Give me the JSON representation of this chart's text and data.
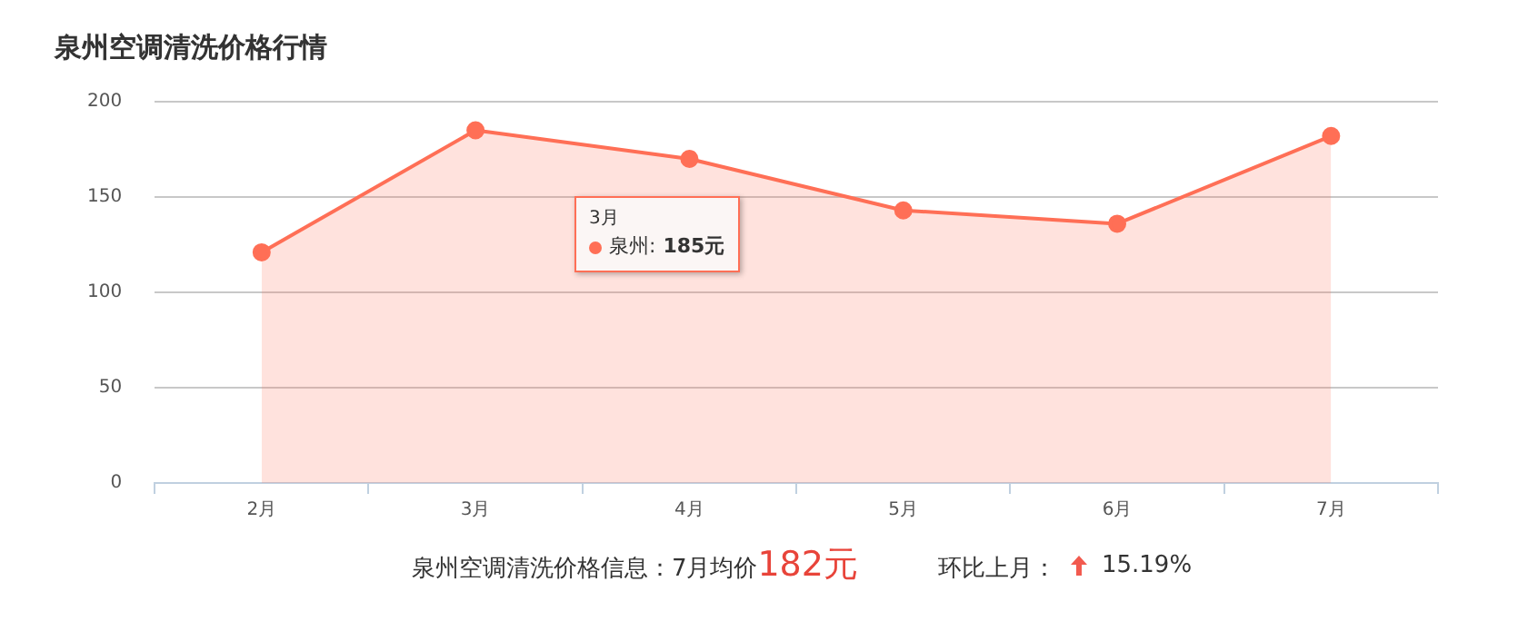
{
  "chart_data": {
    "type": "area",
    "title": "泉州空调清洗价格行情",
    "categories": [
      "2月",
      "3月",
      "4月",
      "5月",
      "6月",
      "7月"
    ],
    "series": [
      {
        "name": "泉州",
        "color": "#ff6f56",
        "values": [
          121,
          185,
          170,
          143,
          136,
          182
        ]
      }
    ],
    "ylim": [
      0,
      200
    ],
    "yticks": [
      0,
      50,
      100,
      150,
      200
    ],
    "grid": "y",
    "legend": "top",
    "marker": "circle",
    "annotations": [
      "3月",
      ":",
      "185元",
      "泉州空调清洗价格信息：7月均价",
      "182元",
      "环比上月：",
      "15.19%"
    ]
  }
}
